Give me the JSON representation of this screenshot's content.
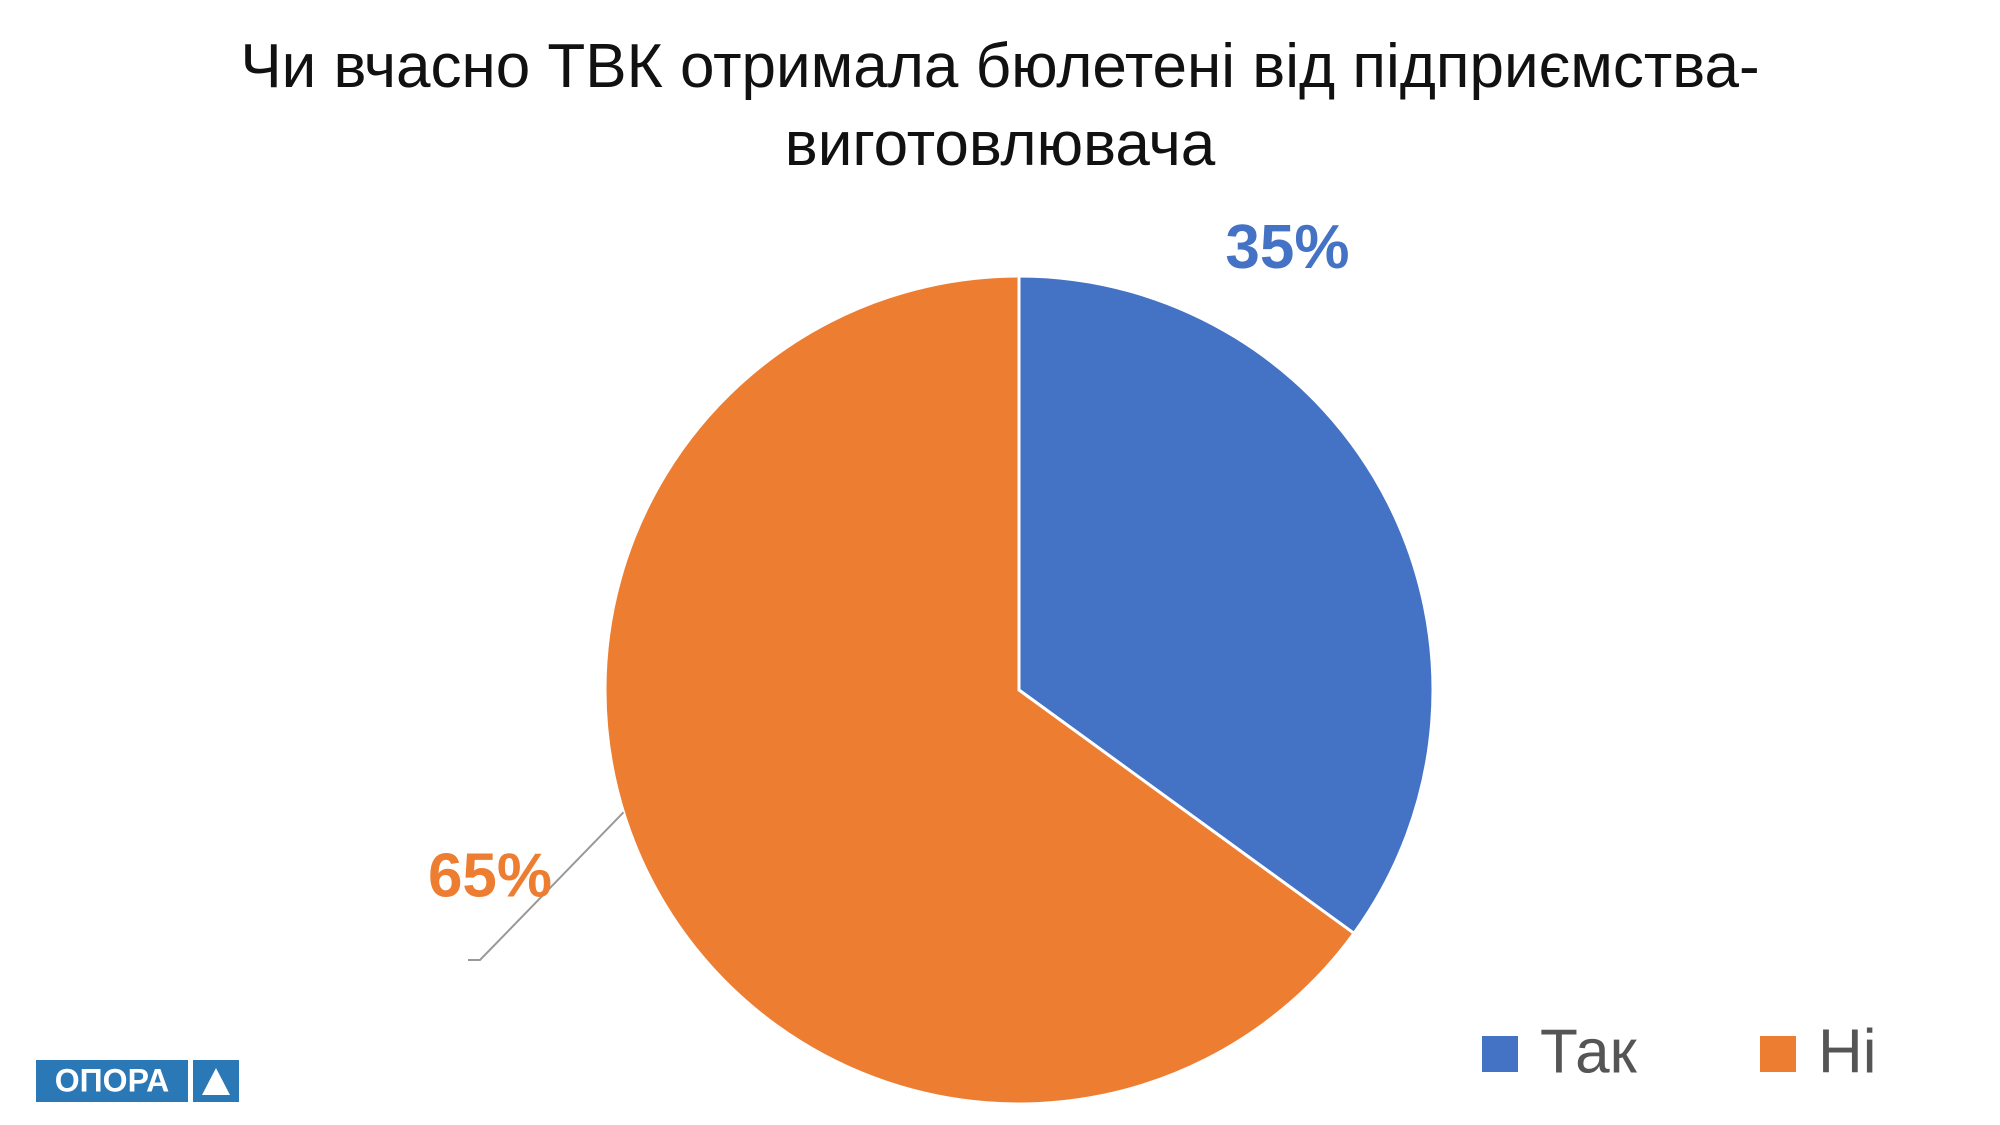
{
  "chart_data": {
    "type": "pie",
    "title": "Чи вчасно ТВК отримала бюлетені від підприємства-виготовлювача",
    "categories": [
      "Так",
      "Ні"
    ],
    "values": [
      35,
      65
    ],
    "value_labels": [
      "35%",
      "65%"
    ],
    "colors": [
      "#4472c4",
      "#ed7d31"
    ],
    "legend": "bottom-right"
  },
  "logo": "ОПОРА"
}
